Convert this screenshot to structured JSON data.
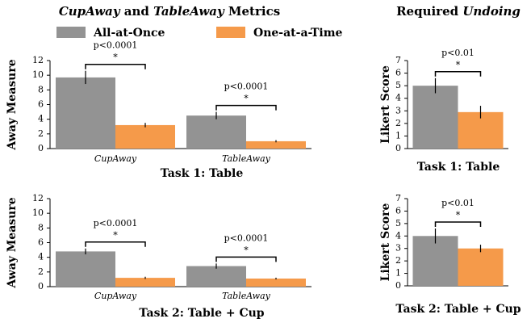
{
  "headings": [
    [
      "CupAway",
      " and ",
      "TableAway",
      " Metrics"
    ],
    [
      "Required ",
      "Undoing"
    ]
  ],
  "chart_data": [
    {
      "type": "bar",
      "title": "Task 1: Table",
      "ylabel": "Away Measure",
      "categories": [
        "CupAway",
        "TableAway"
      ],
      "series": [
        {
          "name": "All-at-Once",
          "color": "#939393",
          "values": [
            9.7,
            4.5
          ],
          "errors": [
            0.9,
            0.5
          ]
        },
        {
          "name": "One-at-a-Time",
          "color": "#f59a4a",
          "values": [
            3.2,
            1.0
          ],
          "errors": [
            0.3,
            0.15
          ]
        }
      ],
      "significance": [
        {
          "p": "p<0.0001",
          "mark": "*"
        },
        {
          "p": "p<0.0001",
          "mark": "*"
        }
      ],
      "ylim": [
        0,
        12
      ],
      "yticks": [
        0,
        2,
        4,
        6,
        8,
        10,
        12
      ]
    },
    {
      "type": "bar",
      "title": "Task 2: Table + Cup",
      "ylabel": "Away Measure",
      "categories": [
        "CupAway",
        "TableAway"
      ],
      "series": [
        {
          "color": "#939393",
          "values": [
            4.8,
            2.8
          ],
          "errors": [
            0.4,
            0.35
          ]
        },
        {
          "color": "#f59a4a",
          "values": [
            1.2,
            1.1
          ],
          "errors": [
            0.15,
            0.12
          ]
        }
      ],
      "significance": [
        {
          "p": "p<0.0001",
          "mark": "*"
        },
        {
          "p": "p<0.0001",
          "mark": "*"
        }
      ],
      "ylim": [
        0,
        12
      ],
      "yticks": [
        0,
        2,
        4,
        6,
        8,
        10,
        12
      ]
    },
    {
      "type": "bar",
      "title": "Task 1: Table",
      "ylabel": "Likert Score",
      "categories": [
        null
      ],
      "series": [
        {
          "color": "#939393",
          "values": [
            5.0
          ],
          "errors": [
            0.6
          ]
        },
        {
          "color": "#f59a4a",
          "values": [
            2.9
          ],
          "errors": [
            0.5
          ]
        }
      ],
      "significance": [
        {
          "p": "p<0.01",
          "mark": "*"
        }
      ],
      "ylim": [
        0,
        7
      ],
      "yticks": [
        0,
        1,
        2,
        3,
        4,
        5,
        6,
        7
      ]
    },
    {
      "type": "bar",
      "title": "Task 2: Table + Cup",
      "ylabel": "Likert Score",
      "categories": [
        null
      ],
      "series": [
        {
          "color": "#939393",
          "values": [
            4.0
          ],
          "errors": [
            0.6
          ]
        },
        {
          "color": "#f59a4a",
          "values": [
            3.0
          ],
          "errors": [
            0.3
          ]
        }
      ],
      "significance": [
        {
          "p": "p<0.01",
          "mark": "*"
        }
      ],
      "ylim": [
        0,
        7
      ],
      "yticks": [
        0,
        1,
        2,
        3,
        4,
        5,
        6,
        7
      ]
    }
  ]
}
